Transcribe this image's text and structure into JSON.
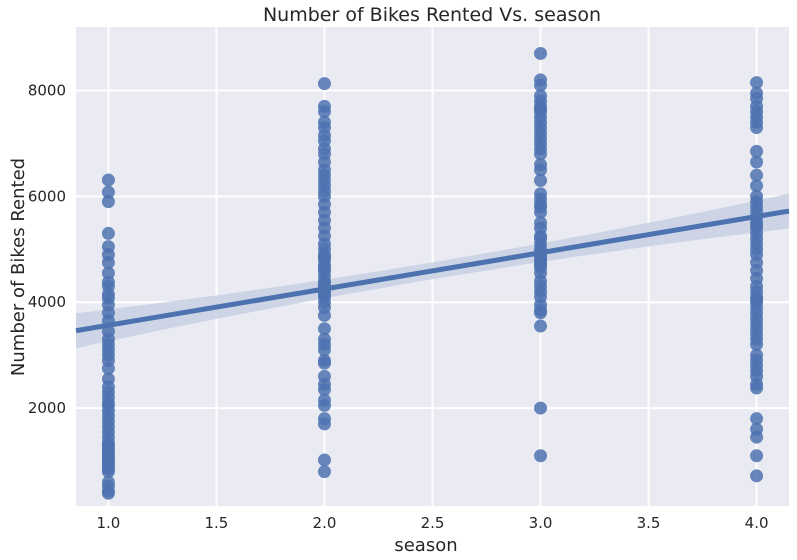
{
  "chart_data": {
    "type": "scatter",
    "title": "Number of Bikes Rented Vs. season",
    "xlabel": "season",
    "ylabel": "Number of Bikes Rented",
    "xlim": [
      0.85,
      4.15
    ],
    "ylim": [
      150,
      9200
    ],
    "xticks": [
      1.0,
      1.5,
      2.0,
      2.5,
      3.0,
      3.5,
      4.0
    ],
    "xtick_labels": [
      "1.0",
      "1.5",
      "2.0",
      "2.5",
      "3.0",
      "3.5",
      "4.0"
    ],
    "yticks": [
      2000,
      4000,
      6000,
      8000
    ],
    "ytick_labels": [
      "2000",
      "4000",
      "6000",
      "8000"
    ],
    "grid": true,
    "colors": {
      "background": "#eaeaf2",
      "grid": "#ffffff",
      "points": "#4c72b0",
      "line": "#4c72b0",
      "band": "#c7d0e3"
    },
    "series": [
      {
        "x": [
          1,
          1,
          1,
          1,
          1,
          1,
          1,
          1,
          1,
          1,
          1,
          1,
          1,
          1,
          1,
          1,
          1,
          1,
          1,
          1,
          1,
          1,
          1,
          1,
          1,
          1,
          1,
          1,
          1,
          1,
          1,
          1,
          1,
          1,
          1,
          1,
          1,
          1,
          1,
          1,
          1,
          1,
          1,
          1,
          1,
          1,
          1,
          1,
          1,
          1,
          2,
          2,
          2,
          2,
          2,
          2,
          2,
          2,
          2,
          2,
          2,
          2,
          2,
          2,
          2,
          2,
          2,
          2,
          2,
          2,
          2,
          2,
          2,
          2,
          2,
          2,
          2,
          2,
          2,
          2,
          2,
          2,
          2,
          2,
          2,
          2,
          2,
          2,
          2,
          2,
          2,
          2,
          2,
          2,
          2,
          2,
          2,
          2,
          2,
          2,
          2,
          2,
          2,
          2,
          2,
          3,
          3,
          3,
          3,
          3,
          3,
          3,
          3,
          3,
          3,
          3,
          3,
          3,
          3,
          3,
          3,
          3,
          3,
          3,
          3,
          3,
          3,
          3,
          3,
          3,
          3,
          3,
          3,
          3,
          3,
          3,
          3,
          3,
          3,
          3,
          3,
          3,
          3,
          3,
          3,
          3,
          3,
          3,
          3,
          3,
          3,
          3,
          3,
          4,
          4,
          4,
          4,
          4,
          4,
          4,
          4,
          4,
          4,
          4,
          4,
          4,
          4,
          4,
          4,
          4,
          4,
          4,
          4,
          4,
          4,
          4,
          4,
          4,
          4,
          4,
          4,
          4,
          4,
          4,
          4,
          4,
          4,
          4,
          4,
          4,
          4,
          4,
          4,
          4,
          4,
          4,
          4,
          4,
          4,
          4,
          4,
          4,
          4,
          4,
          4,
          4
        ],
        "y": [
          6310,
          6080,
          5900,
          5300,
          5050,
          4900,
          4750,
          4550,
          4380,
          4300,
          4150,
          4080,
          3950,
          3800,
          3650,
          3450,
          3300,
          3200,
          3100,
          3000,
          2900,
          2750,
          2550,
          2400,
          2300,
          2200,
          2100,
          2050,
          1950,
          1850,
          1750,
          1650,
          1550,
          1450,
          1350,
          1300,
          1250,
          1200,
          1150,
          1100,
          1050,
          1000,
          950,
          900,
          850,
          800,
          600,
          520,
          430,
          390,
          8130,
          7700,
          7600,
          7400,
          7300,
          7150,
          7050,
          6900,
          6800,
          6650,
          6500,
          6400,
          6300,
          6200,
          6100,
          6000,
          5850,
          5700,
          5550,
          5400,
          5250,
          5100,
          5000,
          4900,
          4800,
          4700,
          4600,
          4500,
          4400,
          4300,
          4250,
          4200,
          4150,
          4100,
          4000,
          3900,
          3750,
          3500,
          3300,
          3200,
          3100,
          2850,
          2600,
          2450,
          2350,
          2150,
          2050,
          1800,
          1700,
          1020,
          800,
          2900,
          4850,
          4650,
          4350,
          8700,
          8200,
          8100,
          7900,
          7800,
          7700,
          7600,
          7500,
          7400,
          7300,
          7200,
          7100,
          7000,
          6900,
          6800,
          6500,
          6300,
          6050,
          5950,
          5850,
          5700,
          5500,
          5400,
          5250,
          5100,
          5000,
          4950,
          4900,
          4850,
          4800,
          4700,
          4650,
          4550,
          4400,
          4300,
          4200,
          4100,
          3950,
          3850,
          3800,
          3550,
          2000,
          1100,
          7650,
          6600,
          5800,
          5200,
          4750,
          8150,
          7950,
          7850,
          7700,
          7600,
          7500,
          7400,
          7300,
          6850,
          6650,
          6400,
          6200,
          6000,
          5900,
          5800,
          5700,
          5600,
          5500,
          5400,
          5300,
          5200,
          5100,
          5000,
          4900,
          4750,
          4600,
          4450,
          4300,
          4200,
          4100,
          4000,
          3900,
          3800,
          3700,
          3600,
          3500,
          3400,
          3200,
          3000,
          2900,
          2800,
          2600,
          2450,
          2380,
          1800,
          1600,
          1450,
          1100,
          720,
          5450,
          4050,
          3300,
          2700
        ]
      }
    ],
    "regression": {
      "slope": 685,
      "intercept": 2880,
      "ci_halfwidth_min": 160,
      "ci_halfwidth_end": 330
    }
  }
}
